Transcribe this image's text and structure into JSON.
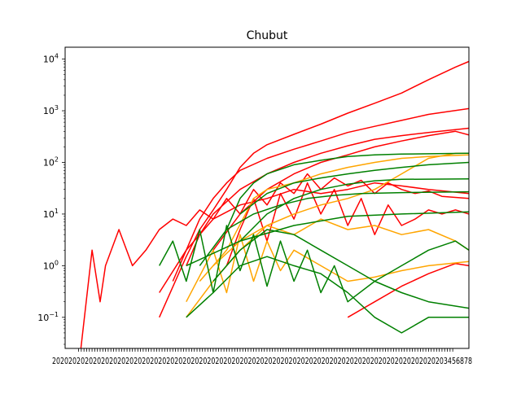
{
  "chart_data": {
    "type": "line",
    "title": "Chubut",
    "xlabel": "",
    "ylabel": "",
    "yscale": "log",
    "ylim": [
      0.025,
      17000
    ],
    "y_ticks": [
      {
        "value": 0.1,
        "base": "10",
        "exp": "−1"
      },
      {
        "value": 1,
        "base": "10",
        "exp": "0"
      },
      {
        "value": 10,
        "base": "10",
        "exp": "1"
      },
      {
        "value": 100,
        "base": "10",
        "exp": "2"
      },
      {
        "value": 1000,
        "base": "10",
        "exp": "3"
      },
      {
        "value": 10000,
        "base": "10",
        "exp": "4"
      }
    ],
    "x_tick_count": 140,
    "x_tick_labels_note": "dense overlapping date labels (illegible)",
    "x_range": [
      -5,
      145
    ],
    "colors": {
      "red": "#ff0000",
      "orange": "#ffa500",
      "green": "#008000"
    },
    "grid": false,
    "legend": "none",
    "series": [
      {
        "color": "#ff0000",
        "points": [
          [
            30,
            0.1
          ],
          [
            40,
            1.5
          ],
          [
            45,
            5
          ],
          [
            50,
            12
          ],
          [
            55,
            30
          ],
          [
            60,
            80
          ],
          [
            65,
            150
          ],
          [
            70,
            220
          ],
          [
            80,
            350
          ],
          [
            90,
            550
          ],
          [
            100,
            900
          ],
          [
            110,
            1400
          ],
          [
            120,
            2200
          ],
          [
            130,
            4000
          ],
          [
            140,
            7000
          ],
          [
            145,
            9000
          ]
        ]
      },
      {
        "color": "#ff0000",
        "points": [
          [
            35,
            0.5
          ],
          [
            40,
            2
          ],
          [
            45,
            8
          ],
          [
            50,
            20
          ],
          [
            55,
            40
          ],
          [
            60,
            70
          ],
          [
            70,
            120
          ],
          [
            80,
            180
          ],
          [
            90,
            260
          ],
          [
            100,
            380
          ],
          [
            110,
            500
          ],
          [
            120,
            650
          ],
          [
            130,
            850
          ],
          [
            145,
            1100
          ]
        ]
      },
      {
        "color": "#ff0000",
        "points": [
          [
            40,
            1
          ],
          [
            45,
            4
          ],
          [
            50,
            10
          ],
          [
            60,
            30
          ],
          [
            70,
            60
          ],
          [
            80,
            100
          ],
          [
            90,
            150
          ],
          [
            100,
            210
          ],
          [
            110,
            280
          ],
          [
            120,
            330
          ],
          [
            130,
            380
          ],
          [
            145,
            460
          ]
        ]
      },
      {
        "color": "#ff0000",
        "points": [
          [
            50,
            2
          ],
          [
            60,
            10
          ],
          [
            70,
            30
          ],
          [
            80,
            60
          ],
          [
            90,
            100
          ],
          [
            100,
            140
          ],
          [
            110,
            200
          ],
          [
            120,
            260
          ],
          [
            130,
            330
          ],
          [
            140,
            400
          ],
          [
            145,
            340
          ]
        ]
      },
      {
        "color": "#ff0000",
        "points": [
          [
            0,
            0.01
          ],
          [
            5,
            2
          ],
          [
            8,
            0.2
          ],
          [
            10,
            1
          ],
          [
            15,
            5
          ],
          [
            20,
            1
          ],
          [
            25,
            2
          ],
          [
            30,
            5
          ],
          [
            35,
            8
          ],
          [
            40,
            6
          ],
          [
            45,
            12
          ],
          [
            50,
            8
          ],
          [
            55,
            20
          ],
          [
            60,
            10
          ],
          [
            65,
            30
          ],
          [
            70,
            15
          ],
          [
            75,
            40
          ],
          [
            80,
            25
          ],
          [
            85,
            60
          ],
          [
            90,
            30
          ],
          [
            95,
            50
          ],
          [
            100,
            35
          ],
          [
            105,
            45
          ],
          [
            110,
            25
          ],
          [
            115,
            40
          ],
          [
            120,
            30
          ],
          [
            125,
            25
          ],
          [
            130,
            28
          ],
          [
            135,
            22
          ],
          [
            145,
            20
          ]
        ]
      },
      {
        "color": "#ff0000",
        "points": [
          [
            30,
            0.3
          ],
          [
            40,
            2
          ],
          [
            50,
            8
          ],
          [
            60,
            15
          ],
          [
            70,
            20
          ],
          [
            80,
            30
          ],
          [
            90,
            25
          ],
          [
            100,
            30
          ],
          [
            110,
            40
          ],
          [
            120,
            35
          ],
          [
            130,
            30
          ],
          [
            145,
            25
          ]
        ]
      },
      {
        "color": "#ff0000",
        "points": [
          [
            55,
            1
          ],
          [
            60,
            5
          ],
          [
            65,
            20
          ],
          [
            70,
            3
          ],
          [
            75,
            25
          ],
          [
            80,
            8
          ],
          [
            85,
            40
          ],
          [
            90,
            10
          ],
          [
            95,
            30
          ],
          [
            100,
            6
          ],
          [
            105,
            20
          ],
          [
            110,
            4
          ],
          [
            115,
            15
          ],
          [
            120,
            6
          ],
          [
            125,
            8
          ],
          [
            130,
            12
          ],
          [
            135,
            10
          ],
          [
            140,
            12
          ],
          [
            145,
            10
          ]
        ]
      },
      {
        "color": "#ff0000",
        "points": [
          [
            100,
            0.1
          ],
          [
            110,
            0.2
          ],
          [
            120,
            0.4
          ],
          [
            130,
            0.7
          ],
          [
            140,
            1.1
          ],
          [
            145,
            1.0
          ]
        ]
      },
      {
        "color": "#ffa500",
        "points": [
          [
            40,
            0.1
          ],
          [
            50,
            0.5
          ],
          [
            60,
            2
          ],
          [
            70,
            6
          ],
          [
            80,
            10
          ],
          [
            90,
            15
          ],
          [
            100,
            20
          ],
          [
            110,
            30
          ],
          [
            120,
            60
          ],
          [
            130,
            120
          ],
          [
            140,
            150
          ],
          [
            145,
            150
          ]
        ]
      },
      {
        "color": "#ffa500",
        "points": [
          [
            45,
            0.5
          ],
          [
            55,
            2
          ],
          [
            65,
            20
          ],
          [
            70,
            30
          ],
          [
            80,
            40
          ],
          [
            90,
            60
          ],
          [
            100,
            80
          ],
          [
            110,
            100
          ],
          [
            120,
            120
          ],
          [
            130,
            130
          ],
          [
            145,
            140
          ]
        ]
      },
      {
        "color": "#ffa500",
        "points": [
          [
            50,
            1
          ],
          [
            60,
            3
          ],
          [
            70,
            6
          ],
          [
            80,
            4
          ],
          [
            90,
            8
          ],
          [
            100,
            5
          ],
          [
            110,
            6
          ],
          [
            120,
            4
          ],
          [
            130,
            5
          ],
          [
            140,
            3
          ],
          [
            145,
            2
          ]
        ]
      },
      {
        "color": "#ffa500",
        "points": [
          [
            40,
            0.2
          ],
          [
            50,
            2
          ],
          [
            55,
            0.3
          ],
          [
            60,
            4
          ],
          [
            65,
            0.5
          ],
          [
            70,
            3
          ],
          [
            75,
            0.8
          ],
          [
            80,
            2
          ],
          [
            90,
            1
          ],
          [
            100,
            0.5
          ],
          [
            110,
            0.6
          ],
          [
            120,
            0.8
          ],
          [
            130,
            1
          ],
          [
            145,
            1.2
          ]
        ]
      },
      {
        "color": "#008000",
        "points": [
          [
            55,
            5
          ],
          [
            60,
            20
          ],
          [
            65,
            40
          ],
          [
            70,
            60
          ],
          [
            80,
            90
          ],
          [
            90,
            110
          ],
          [
            100,
            130
          ],
          [
            110,
            140
          ],
          [
            120,
            145
          ],
          [
            145,
            150
          ]
        ]
      },
      {
        "color": "#008000",
        "points": [
          [
            60,
            10
          ],
          [
            70,
            25
          ],
          [
            80,
            40
          ],
          [
            90,
            50
          ],
          [
            100,
            60
          ],
          [
            110,
            70
          ],
          [
            120,
            80
          ],
          [
            130,
            90
          ],
          [
            145,
            100
          ]
        ]
      },
      {
        "color": "#008000",
        "points": [
          [
            60,
            3
          ],
          [
            70,
            10
          ],
          [
            80,
            20
          ],
          [
            90,
            30
          ],
          [
            100,
            38
          ],
          [
            110,
            44
          ],
          [
            120,
            47
          ],
          [
            145,
            48
          ]
        ]
      },
      {
        "color": "#008000",
        "points": [
          [
            45,
            1
          ],
          [
            55,
            5
          ],
          [
            65,
            10
          ],
          [
            75,
            15
          ],
          [
            85,
            20
          ],
          [
            95,
            23
          ],
          [
            105,
            25
          ],
          [
            120,
            26
          ],
          [
            145,
            27
          ]
        ]
      },
      {
        "color": "#008000",
        "points": [
          [
            40,
            1
          ],
          [
            60,
            3
          ],
          [
            80,
            6
          ],
          [
            100,
            9
          ],
          [
            120,
            10
          ],
          [
            145,
            11
          ]
        ]
      },
      {
        "color": "#008000",
        "points": [
          [
            30,
            1
          ],
          [
            35,
            3
          ],
          [
            40,
            0.5
          ],
          [
            45,
            5
          ],
          [
            50,
            0.3
          ],
          [
            55,
            6
          ],
          [
            60,
            0.8
          ],
          [
            65,
            4
          ],
          [
            70,
            0.4
          ],
          [
            75,
            3
          ],
          [
            80,
            0.5
          ],
          [
            85,
            2
          ],
          [
            90,
            0.3
          ],
          [
            95,
            1
          ],
          [
            100,
            0.2
          ],
          [
            110,
            0.5
          ],
          [
            120,
            1
          ],
          [
            130,
            2
          ],
          [
            140,
            3
          ],
          [
            145,
            2
          ]
        ]
      },
      {
        "color": "#008000",
        "points": [
          [
            50,
            0.5
          ],
          [
            60,
            2
          ],
          [
            70,
            5
          ],
          [
            80,
            4
          ],
          [
            90,
            2
          ],
          [
            100,
            1
          ],
          [
            110,
            0.5
          ],
          [
            120,
            0.3
          ],
          [
            130,
            0.2
          ],
          [
            145,
            0.15
          ]
        ]
      },
      {
        "color": "#008000",
        "points": [
          [
            40,
            0.1
          ],
          [
            50,
            0.3
          ],
          [
            60,
            1
          ],
          [
            70,
            1.5
          ],
          [
            80,
            1
          ],
          [
            90,
            0.7
          ],
          [
            100,
            0.3
          ],
          [
            110,
            0.1
          ],
          [
            120,
            0.05
          ],
          [
            130,
            0.1
          ],
          [
            145,
            0.1
          ]
        ]
      }
    ]
  }
}
